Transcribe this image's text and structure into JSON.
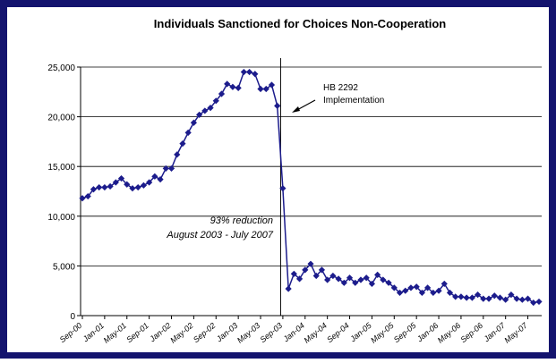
{
  "chart_data": {
    "type": "line",
    "title": "Individuals Sanctioned for Choices Non-Cooperation",
    "categories": [
      "Sep-00",
      null,
      null,
      null,
      "Jan-01",
      null,
      null,
      null,
      "May-01",
      null,
      null,
      null,
      "Sep-01",
      null,
      null,
      null,
      "Jan-02",
      null,
      null,
      null,
      "May-02",
      null,
      null,
      null,
      "Sep-02",
      null,
      null,
      null,
      "Jan-03",
      null,
      null,
      null,
      "May-03",
      null,
      null,
      null,
      "Sep-03",
      null,
      null,
      null,
      "Jan-04",
      null,
      null,
      null,
      "May-04",
      null,
      null,
      null,
      "Sep-04",
      null,
      null,
      null,
      "Jan-05",
      null,
      null,
      null,
      "May-05",
      null,
      null,
      null,
      "Sep-05",
      null,
      null,
      null,
      "Jan-06",
      null,
      null,
      null,
      "May-06",
      null,
      null,
      null,
      "Sep-06",
      null,
      null,
      null,
      "Jan-07",
      null,
      null,
      null,
      "May-07",
      null,
      null
    ],
    "series": [
      {
        "name": "Individuals Sanctioned",
        "color": "#1c1c8c",
        "values": [
          11800,
          12000,
          12700,
          12900,
          12900,
          13000,
          13400,
          13800,
          13200,
          12800,
          12900,
          13100,
          13400,
          14000,
          13700,
          14800,
          14800,
          16200,
          17300,
          18400,
          19400,
          20200,
          20600,
          20900,
          21600,
          22300,
          23300,
          23000,
          22900,
          24500,
          24500,
          24300,
          22800,
          22800,
          23200,
          21100,
          12800,
          2700,
          4200,
          3700,
          4600,
          5200,
          4000,
          4600,
          3600,
          4000,
          3700,
          3300,
          3800,
          3300,
          3600,
          3800,
          3200,
          4100,
          3600,
          3300,
          2800,
          2300,
          2500,
          2800,
          2900,
          2300,
          2800,
          2300,
          2500,
          3200,
          2300,
          1900,
          1900,
          1800,
          1800,
          2100,
          1700,
          1700,
          2000,
          1800,
          1600,
          2100,
          1700,
          1600,
          1700,
          1300,
          1400
        ]
      }
    ],
    "ylim": [
      0,
      25000
    ],
    "yticks": [
      0,
      {
        "value": 5000,
        "label": "5,000"
      },
      {
        "value": 10000,
        "label": "10,000"
      },
      {
        "value": 15000,
        "label": "15,000"
      },
      {
        "value": 20000,
        "label": "20,000"
      },
      {
        "value": 25000,
        "label": "25,000"
      }
    ],
    "grid": true,
    "annotations": [
      "HB 2292",
      "Implementation",
      "93% reduction",
      "August 2003 - July 2007"
    ]
  }
}
